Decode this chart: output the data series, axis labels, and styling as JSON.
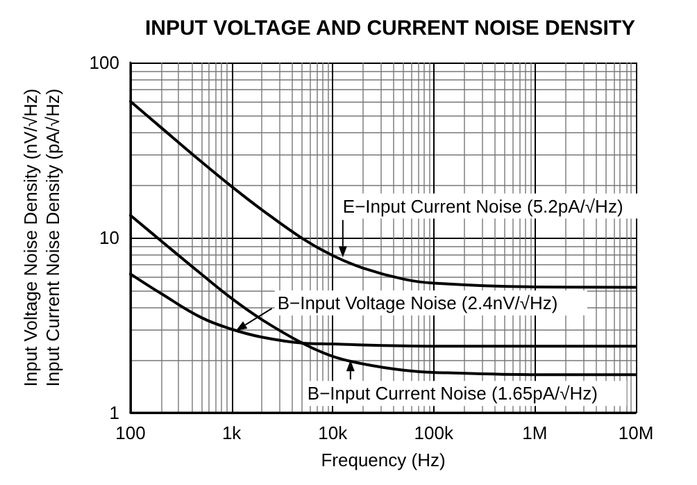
{
  "chart_data": {
    "type": "line",
    "title": "INPUT VOLTAGE AND CURRENT NOISE DENSITY",
    "xlabel": "Frequency (Hz)",
    "ylabel": "Input Voltage Noise Density (nV/√Hz)\nInput Current Noise Density (pA/√Hz)",
    "x": [
      100,
      200,
      500,
      1000,
      2000,
      5000,
      10000,
      20000,
      50000,
      100000,
      1000000,
      10000000
    ],
    "series": [
      {
        "color": "#000000",
        "values": [
          60,
          42.6,
          27.2,
          19.6,
          14.4,
          9.9,
          7.9,
          6.7,
          5.8,
          5.5,
          5.23,
          5.2
        ]
      },
      {
        "color": "#000000",
        "values": [
          6.2,
          4.8,
          3.5,
          3.0,
          2.7,
          2.5,
          2.47,
          2.44,
          2.41,
          2.4,
          2.4,
          2.4
        ]
      },
      {
        "color": "#000000",
        "values": [
          13.4,
          9.6,
          6.2,
          4.5,
          3.4,
          2.5,
          2.1,
          1.9,
          1.75,
          1.7,
          1.65,
          1.65
        ]
      }
    ],
    "annotations": [
      {
        "text": "E−Input Current Noise (5.2pA/√Hz)",
        "x": 12600,
        "y": 7.7
      },
      {
        "text": "B−Input Voltage Noise (2.4nV/√Hz)",
        "x": 1100,
        "y": 2.94
      },
      {
        "text": "B−Input Current Noise (1.65pA/√Hz)",
        "x": 15000,
        "y": 2.0
      }
    ],
    "xlim": [
      100,
      10000000
    ],
    "xticks": [
      100,
      {
        "value": 1000,
        "label": "1k"
      },
      {
        "value": 10000,
        "label": "10k"
      },
      {
        "value": 100000,
        "label": "100k"
      },
      {
        "value": 1000000,
        "label": "1M"
      },
      {
        "value": 10000000,
        "label": "10M"
      }
    ],
    "ylim": [
      1,
      100
    ],
    "yticks": [
      1,
      10,
      100
    ],
    "log": "xy",
    "grid": true,
    "marker": "none",
    "line_style": "solid"
  }
}
